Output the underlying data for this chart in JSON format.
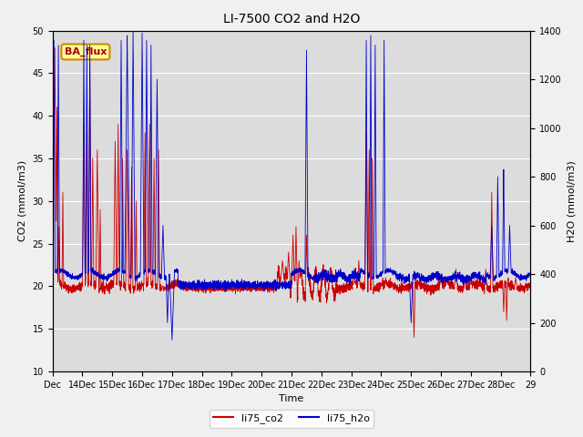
{
  "title": "LI-7500 CO2 and H2O",
  "xlabel": "Time",
  "ylabel_left": "CO2 (mmol/m3)",
  "ylabel_right": "H2O (mmol/m3)",
  "ylim_left": [
    10,
    50
  ],
  "ylim_right": [
    0,
    1400
  ],
  "yticks_left": [
    10,
    15,
    20,
    25,
    30,
    35,
    40,
    45,
    50
  ],
  "yticks_right": [
    0,
    200,
    400,
    600,
    800,
    1000,
    1200,
    1400
  ],
  "xtick_labels": [
    "Dec",
    "14Dec",
    "15Dec",
    "16Dec",
    "17Dec",
    "18Dec",
    "19Dec",
    "20Dec",
    "21Dec",
    "22Dec",
    "23Dec",
    "24Dec",
    "25Dec",
    "26Dec",
    "27Dec",
    "28Dec",
    "29"
  ],
  "legend_label1": "li75_co2",
  "legend_label2": "li75_h2o",
  "legend_color1": "#cc0000",
  "legend_color2": "#0000cc",
  "annotation_text": "BA_flux",
  "annotation_bg": "#ffff99",
  "annotation_border": "#cc8800",
  "bg_color": "#dcdcdc",
  "grid_color": "#ffffff",
  "title_fontsize": 10,
  "figsize": [
    6.4,
    4.8
  ],
  "dpi": 100
}
